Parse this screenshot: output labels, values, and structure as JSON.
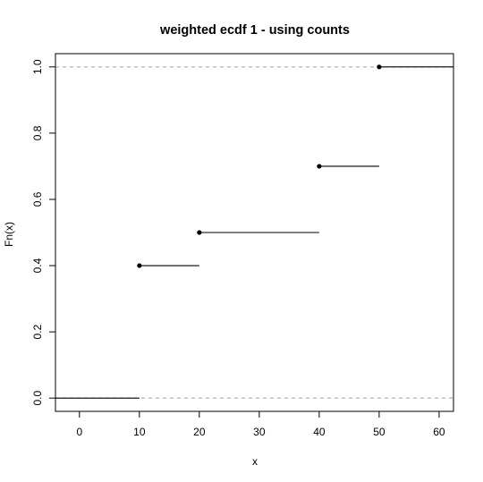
{
  "chart_data": {
    "type": "line",
    "subtype": "step-ecdf",
    "title": "weighted ecdf 1 - using counts",
    "xlabel": "x",
    "ylabel": "Fn(x)",
    "xlim": [
      -4,
      62.4
    ],
    "ylim": [
      -0.04,
      1.04
    ],
    "xticks": [
      0,
      10,
      20,
      30,
      40,
      50,
      60
    ],
    "yticks": [
      0.0,
      0.2,
      0.4,
      0.6,
      0.8,
      1.0
    ],
    "xtick_labels": [
      "0",
      "10",
      "20",
      "30",
      "40",
      "50",
      "60"
    ],
    "ytick_labels": [
      "0.0",
      "0.2",
      "0.4",
      "0.6",
      "0.8",
      "1.0"
    ],
    "reference_lines": [
      0,
      1
    ],
    "reference_line_style": "dashed-gray",
    "steps": [
      {
        "x_start": -4,
        "x_end": 10,
        "y": 0.0,
        "point": false
      },
      {
        "x_start": 10,
        "x_end": 20,
        "y": 0.4,
        "point": true
      },
      {
        "x_start": 20,
        "x_end": 40,
        "y": 0.5,
        "point": true
      },
      {
        "x_start": 40,
        "x_end": 50,
        "y": 0.7,
        "point": true
      },
      {
        "x_start": 50,
        "x_end": 62.4,
        "y": 1.0,
        "point": true
      }
    ],
    "grid": false,
    "legend": "none"
  }
}
